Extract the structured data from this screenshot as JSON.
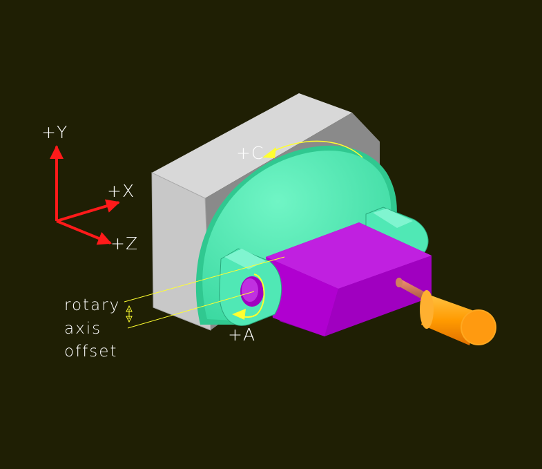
{
  "labels": {
    "y_axis": "+Y",
    "x_axis": "+X",
    "z_axis": "+Z",
    "c_axis": "+C",
    "a_axis": "+A",
    "caption_line1": "rotary",
    "caption_line2": "axis",
    "caption_line3": "offset"
  },
  "colors": {
    "background": "#1f1f04",
    "axis_arrows": "#ff1a1a",
    "base_block": "#c8c8c8",
    "rotary_table": "#4fe8b0",
    "workpiece": "#b000d0",
    "tool_holder": "#ffa000",
    "tool": "#d07050",
    "annotation": "#ffff30"
  }
}
